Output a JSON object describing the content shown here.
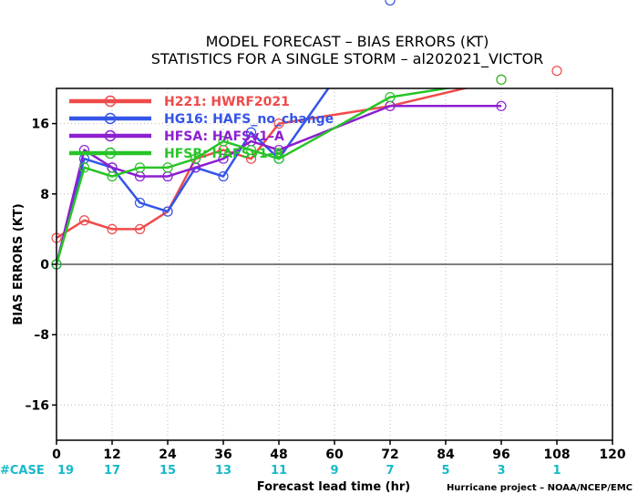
{
  "chart_data": {
    "type": "line",
    "title": "MODEL FORECAST – BIAS ERRORS (KT)",
    "subtitle": "STATISTICS FOR A SINGLE STORM – al202021_VICTOR",
    "xlabel": "Forecast lead time (hr)",
    "ylabel": "BIAS ERRORS (KT)",
    "xlim": [
      0,
      120
    ],
    "ylim": [
      -20,
      20
    ],
    "xticks": [
      0,
      12,
      24,
      36,
      48,
      60,
      72,
      84,
      96,
      108,
      120
    ],
    "yticks": [
      -16,
      -8,
      0,
      8,
      16
    ],
    "case_label": "#CASE",
    "case_counts": [
      {
        "x": 0,
        "n": "19"
      },
      {
        "x": 12,
        "n": "17"
      },
      {
        "x": 24,
        "n": "15"
      },
      {
        "x": 36,
        "n": "13"
      },
      {
        "x": 48,
        "n": "11"
      },
      {
        "x": 60,
        "n": "9"
      },
      {
        "x": 72,
        "n": "7"
      },
      {
        "x": 84,
        "n": "5"
      },
      {
        "x": 96,
        "n": "3"
      },
      {
        "x": 108,
        "n": "1"
      }
    ],
    "credit": "Hurricane project – NOAA/NCEP/EMC",
    "legend_position": "top-left",
    "grid": true,
    "series": [
      {
        "name": "H221: HWRF2021",
        "color": "#ef4a4a",
        "points": [
          [
            0,
            3
          ],
          [
            6,
            5
          ],
          [
            12,
            4
          ],
          [
            18,
            4
          ],
          [
            24,
            6
          ],
          [
            30,
            12
          ],
          [
            36,
            13
          ],
          [
            42,
            12
          ],
          [
            48,
            16
          ],
          [
            72,
            18
          ],
          [
            96,
            21
          ],
          [
            108,
            22
          ]
        ]
      },
      {
        "name": "HG16: HAFS_no_change",
        "color": "#3455e8",
        "points": [
          [
            0,
            0
          ],
          [
            6,
            12
          ],
          [
            12,
            11
          ],
          [
            18,
            7
          ],
          [
            24,
            6
          ],
          [
            30,
            11
          ],
          [
            36,
            10
          ],
          [
            42,
            15
          ],
          [
            48,
            12
          ],
          [
            72,
            30
          ]
        ]
      },
      {
        "name": "HFSA: HAFSv1–A",
        "color": "#8c1fd0",
        "points": [
          [
            0,
            0
          ],
          [
            6,
            13
          ],
          [
            12,
            11
          ],
          [
            18,
            10
          ],
          [
            24,
            10
          ],
          [
            30,
            11
          ],
          [
            36,
            12
          ],
          [
            42,
            14
          ],
          [
            48,
            13
          ],
          [
            72,
            18
          ],
          [
            96,
            18
          ]
        ]
      },
      {
        "name": "HFSB: HAFSv1–B",
        "color": "#27c427",
        "points": [
          [
            0,
            0
          ],
          [
            6,
            11
          ],
          [
            12,
            10
          ],
          [
            18,
            11
          ],
          [
            24,
            11
          ],
          [
            30,
            12
          ],
          [
            36,
            14
          ],
          [
            42,
            13
          ],
          [
            48,
            12
          ],
          [
            72,
            19
          ],
          [
            96,
            21
          ]
        ]
      }
    ]
  }
}
